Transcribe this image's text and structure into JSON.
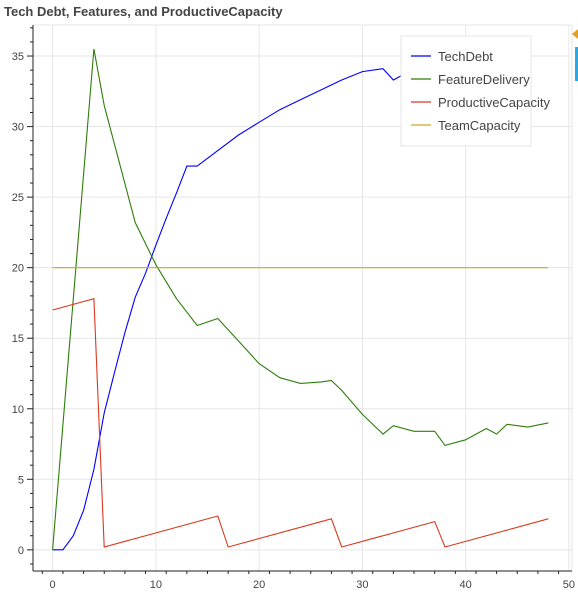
{
  "chart_data": {
    "type": "line",
    "title": "Tech Debt, Features, and ProductiveCapacity",
    "xlabel": "",
    "ylabel": "",
    "xlim": [
      -1.9,
      50.3
    ],
    "ylim": [
      -1.5,
      37.2
    ],
    "xticks": [
      0,
      10,
      20,
      30,
      40,
      50
    ],
    "yticks": [
      0,
      5,
      10,
      15,
      20,
      25,
      30,
      35
    ],
    "grid": true,
    "legend_position": "top-right",
    "series": [
      {
        "name": "TechDebt",
        "color": "#0000ff",
        "x": [
          0,
          1,
          2,
          3,
          4,
          5,
          6,
          7,
          8,
          9,
          10,
          11,
          12,
          13,
          14,
          16,
          18,
          20,
          22,
          24,
          26,
          28,
          30,
          32,
          33,
          34
        ],
        "y": [
          0,
          0,
          1,
          2.8,
          5.7,
          9.7,
          12.6,
          15.4,
          17.9,
          19.6,
          21.6,
          23.5,
          25.3,
          27.2,
          27.2,
          28.3,
          29.4,
          30.3,
          31.2,
          31.9,
          32.6,
          33.3,
          33.9,
          34.1,
          33.3,
          33.7
        ]
      },
      {
        "name": "FeatureDelivery",
        "color": "#2e7d0b",
        "x": [
          0,
          4,
          5,
          8,
          10,
          12,
          14,
          16,
          18,
          20,
          22,
          24,
          26,
          27,
          28,
          30,
          32,
          33,
          35,
          37,
          38,
          40,
          42,
          43,
          44,
          46,
          48
        ],
        "y": [
          0,
          35.5,
          31.5,
          23.2,
          20.2,
          17.8,
          15.9,
          16.4,
          14.8,
          13.2,
          12.2,
          11.8,
          11.9,
          12,
          11.3,
          9.6,
          8.2,
          8.8,
          8.4,
          8.4,
          7.4,
          7.8,
          8.6,
          8.2,
          8.9,
          8.7,
          9
        ]
      },
      {
        "name": "ProductiveCapacity",
        "color": "#d93a1e",
        "x": [
          0,
          4,
          5,
          16,
          17,
          27,
          28,
          37,
          38,
          48
        ],
        "y": [
          17,
          17.8,
          0.2,
          2.4,
          0.2,
          2.2,
          0.2,
          2,
          0.2,
          2.2
        ]
      },
      {
        "name": "TeamCapacity",
        "color": "#ccaa22",
        "x": [
          0,
          48
        ],
        "y": [
          20,
          20
        ]
      }
    ]
  }
}
